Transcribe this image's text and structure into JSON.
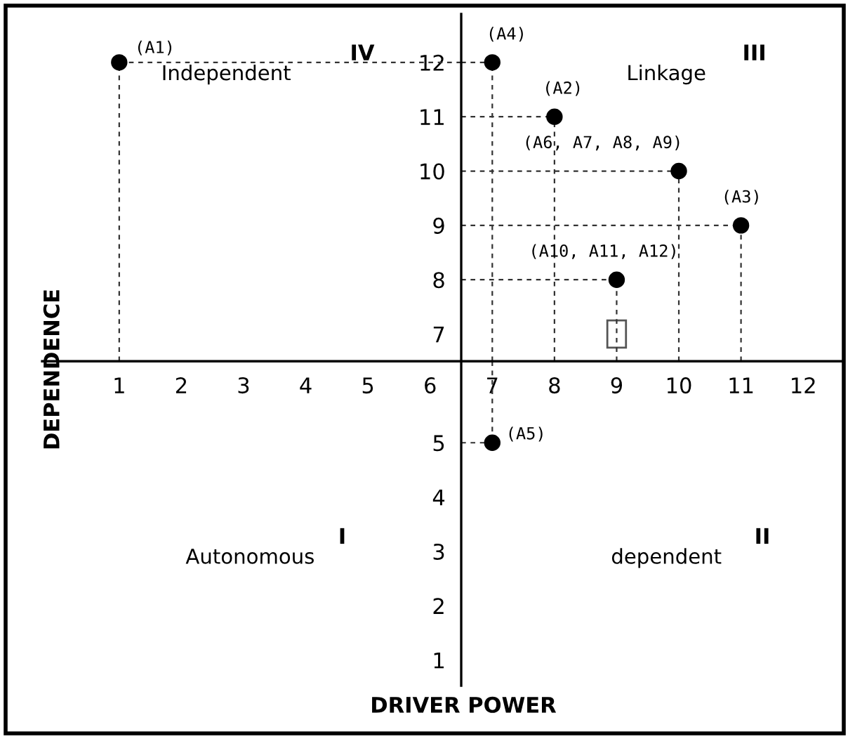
{
  "chart_data": {
    "type": "scatter",
    "xlabel": "DRIVER POWER",
    "ylabel": "DEPENDENCE",
    "x": [
      1,
      7,
      8,
      10,
      11,
      9,
      7
    ],
    "values": [
      12,
      12,
      11,
      10,
      9,
      8,
      5
    ],
    "value_labels": [
      "(A1)",
      "(A4)",
      "(A2)",
      "(A6, A7, A8, A9)",
      "(A3)",
      "(A10, A11, A12)",
      "(A5)"
    ],
    "color": "#000000",
    "marker": "circle",
    "xlim": [
      -0.24,
      12.63
    ],
    "ylim": [
      0.53,
      12.89
    ],
    "xticks": [
      1,
      2,
      3,
      4,
      5,
      6,
      7,
      8,
      9,
      10,
      11,
      12
    ],
    "yticks": [
      1,
      2,
      3,
      4,
      5,
      7,
      8,
      9,
      10,
      11,
      12
    ],
    "annotations": [
      "IV",
      "Independent",
      "III",
      "Linkage",
      "I",
      "Autonomous",
      "II",
      "dependent"
    ],
    "grid": false,
    "legend": false
  }
}
